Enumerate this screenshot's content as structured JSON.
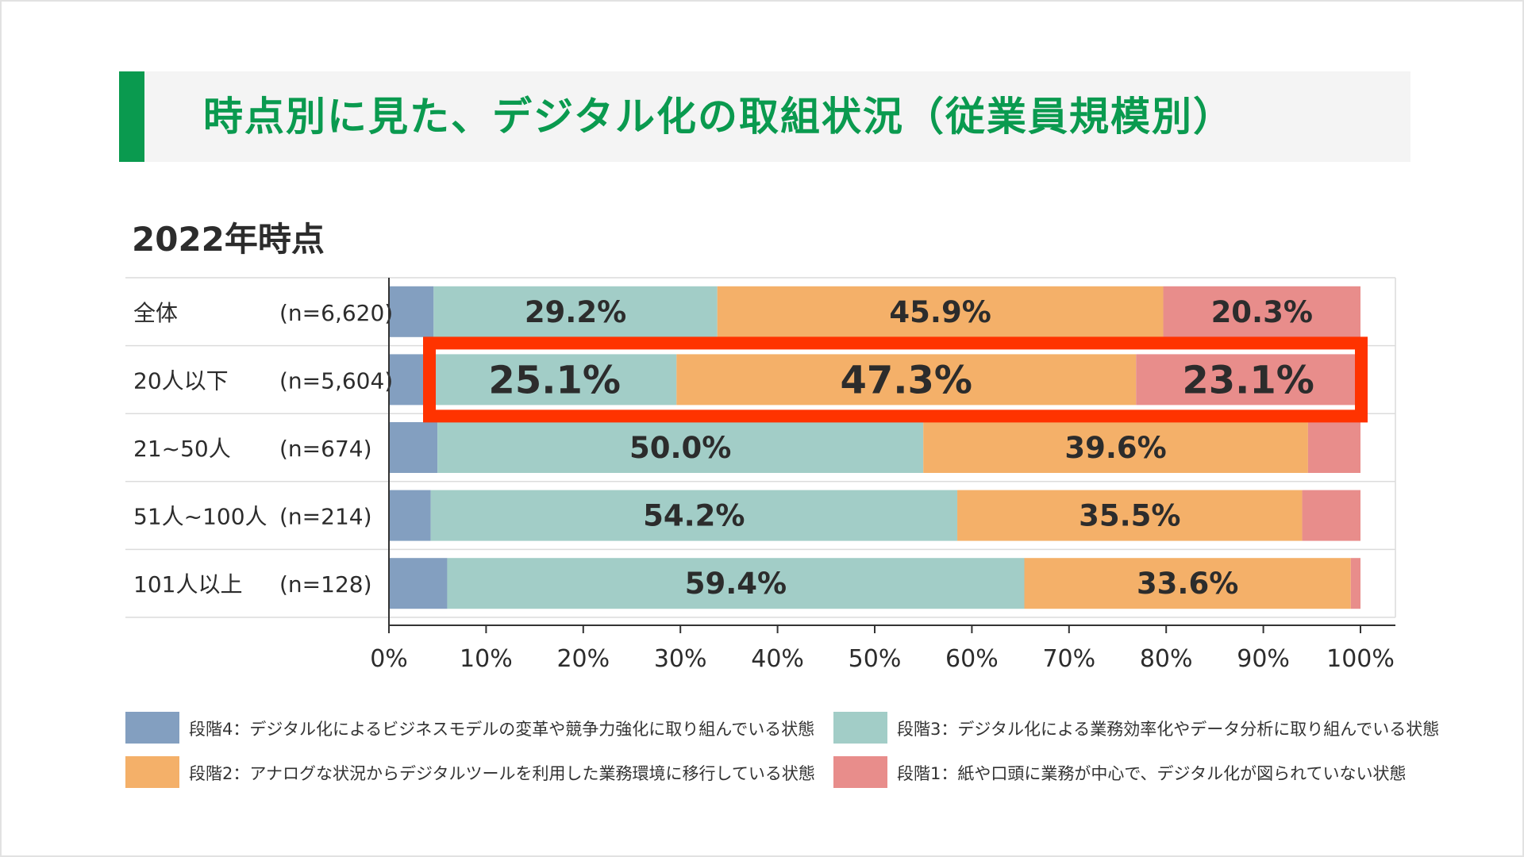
{
  "title": "時点別に見た、デジタル化の取組状況（従業員規模別）",
  "subtitle": "2022年時点",
  "colors": {
    "title": "#0a9a4f",
    "stage4": "#839fc0",
    "stage3": "#a2cdc7",
    "stage2": "#f4b069",
    "stage1": "#e88d8b",
    "highlight": "#ff3300"
  },
  "chart_data": {
    "type": "bar",
    "orientation": "horizontal",
    "stacked": true,
    "xlim": [
      0,
      100
    ],
    "xticks": [
      "0%",
      "10%",
      "20%",
      "30%",
      "40%",
      "50%",
      "60%",
      "70%",
      "80%",
      "90%",
      "100%"
    ],
    "categories": [
      "全体",
      "20人以下",
      "21~50人",
      "51人~100人",
      "101人以上"
    ],
    "sample_sizes": [
      "(n=6,620)",
      "(n=5,604)",
      "(n=674)",
      "(n=214)",
      "(n=128)"
    ],
    "series": [
      {
        "key": "stage4",
        "name": "段階4：デジタル化によるビジネスモデルの変革や競争力強化に取り組んでいる状態",
        "values": [
          4.6,
          4.5,
          5.0,
          4.3,
          6.0
        ],
        "labels": [
          "",
          "",
          "",
          "",
          ""
        ]
      },
      {
        "key": "stage3",
        "name": "段階3：デジタル化による業務効率化やデータ分析に取り組んでいる状態",
        "values": [
          29.2,
          25.1,
          50.0,
          54.2,
          59.4
        ],
        "labels": [
          "29.2%",
          "25.1%",
          "50.0%",
          "54.2%",
          "59.4%"
        ]
      },
      {
        "key": "stage2",
        "name": "段階2：アナログな状況からデジタルツールを利用した業務環境に移行している状態",
        "values": [
          45.9,
          47.3,
          39.6,
          35.5,
          33.6
        ],
        "labels": [
          "45.9%",
          "47.3%",
          "39.6%",
          "35.5%",
          "33.6%"
        ]
      },
      {
        "key": "stage1",
        "name": "段階1：紙や口頭に業務が中心で、デジタル化が図られていない状態",
        "values": [
          20.3,
          23.1,
          5.4,
          6.0,
          1.0
        ],
        "labels": [
          "20.3%",
          "23.1%",
          "",
          "",
          ""
        ]
      }
    ],
    "highlighted_category": "20人以下"
  }
}
